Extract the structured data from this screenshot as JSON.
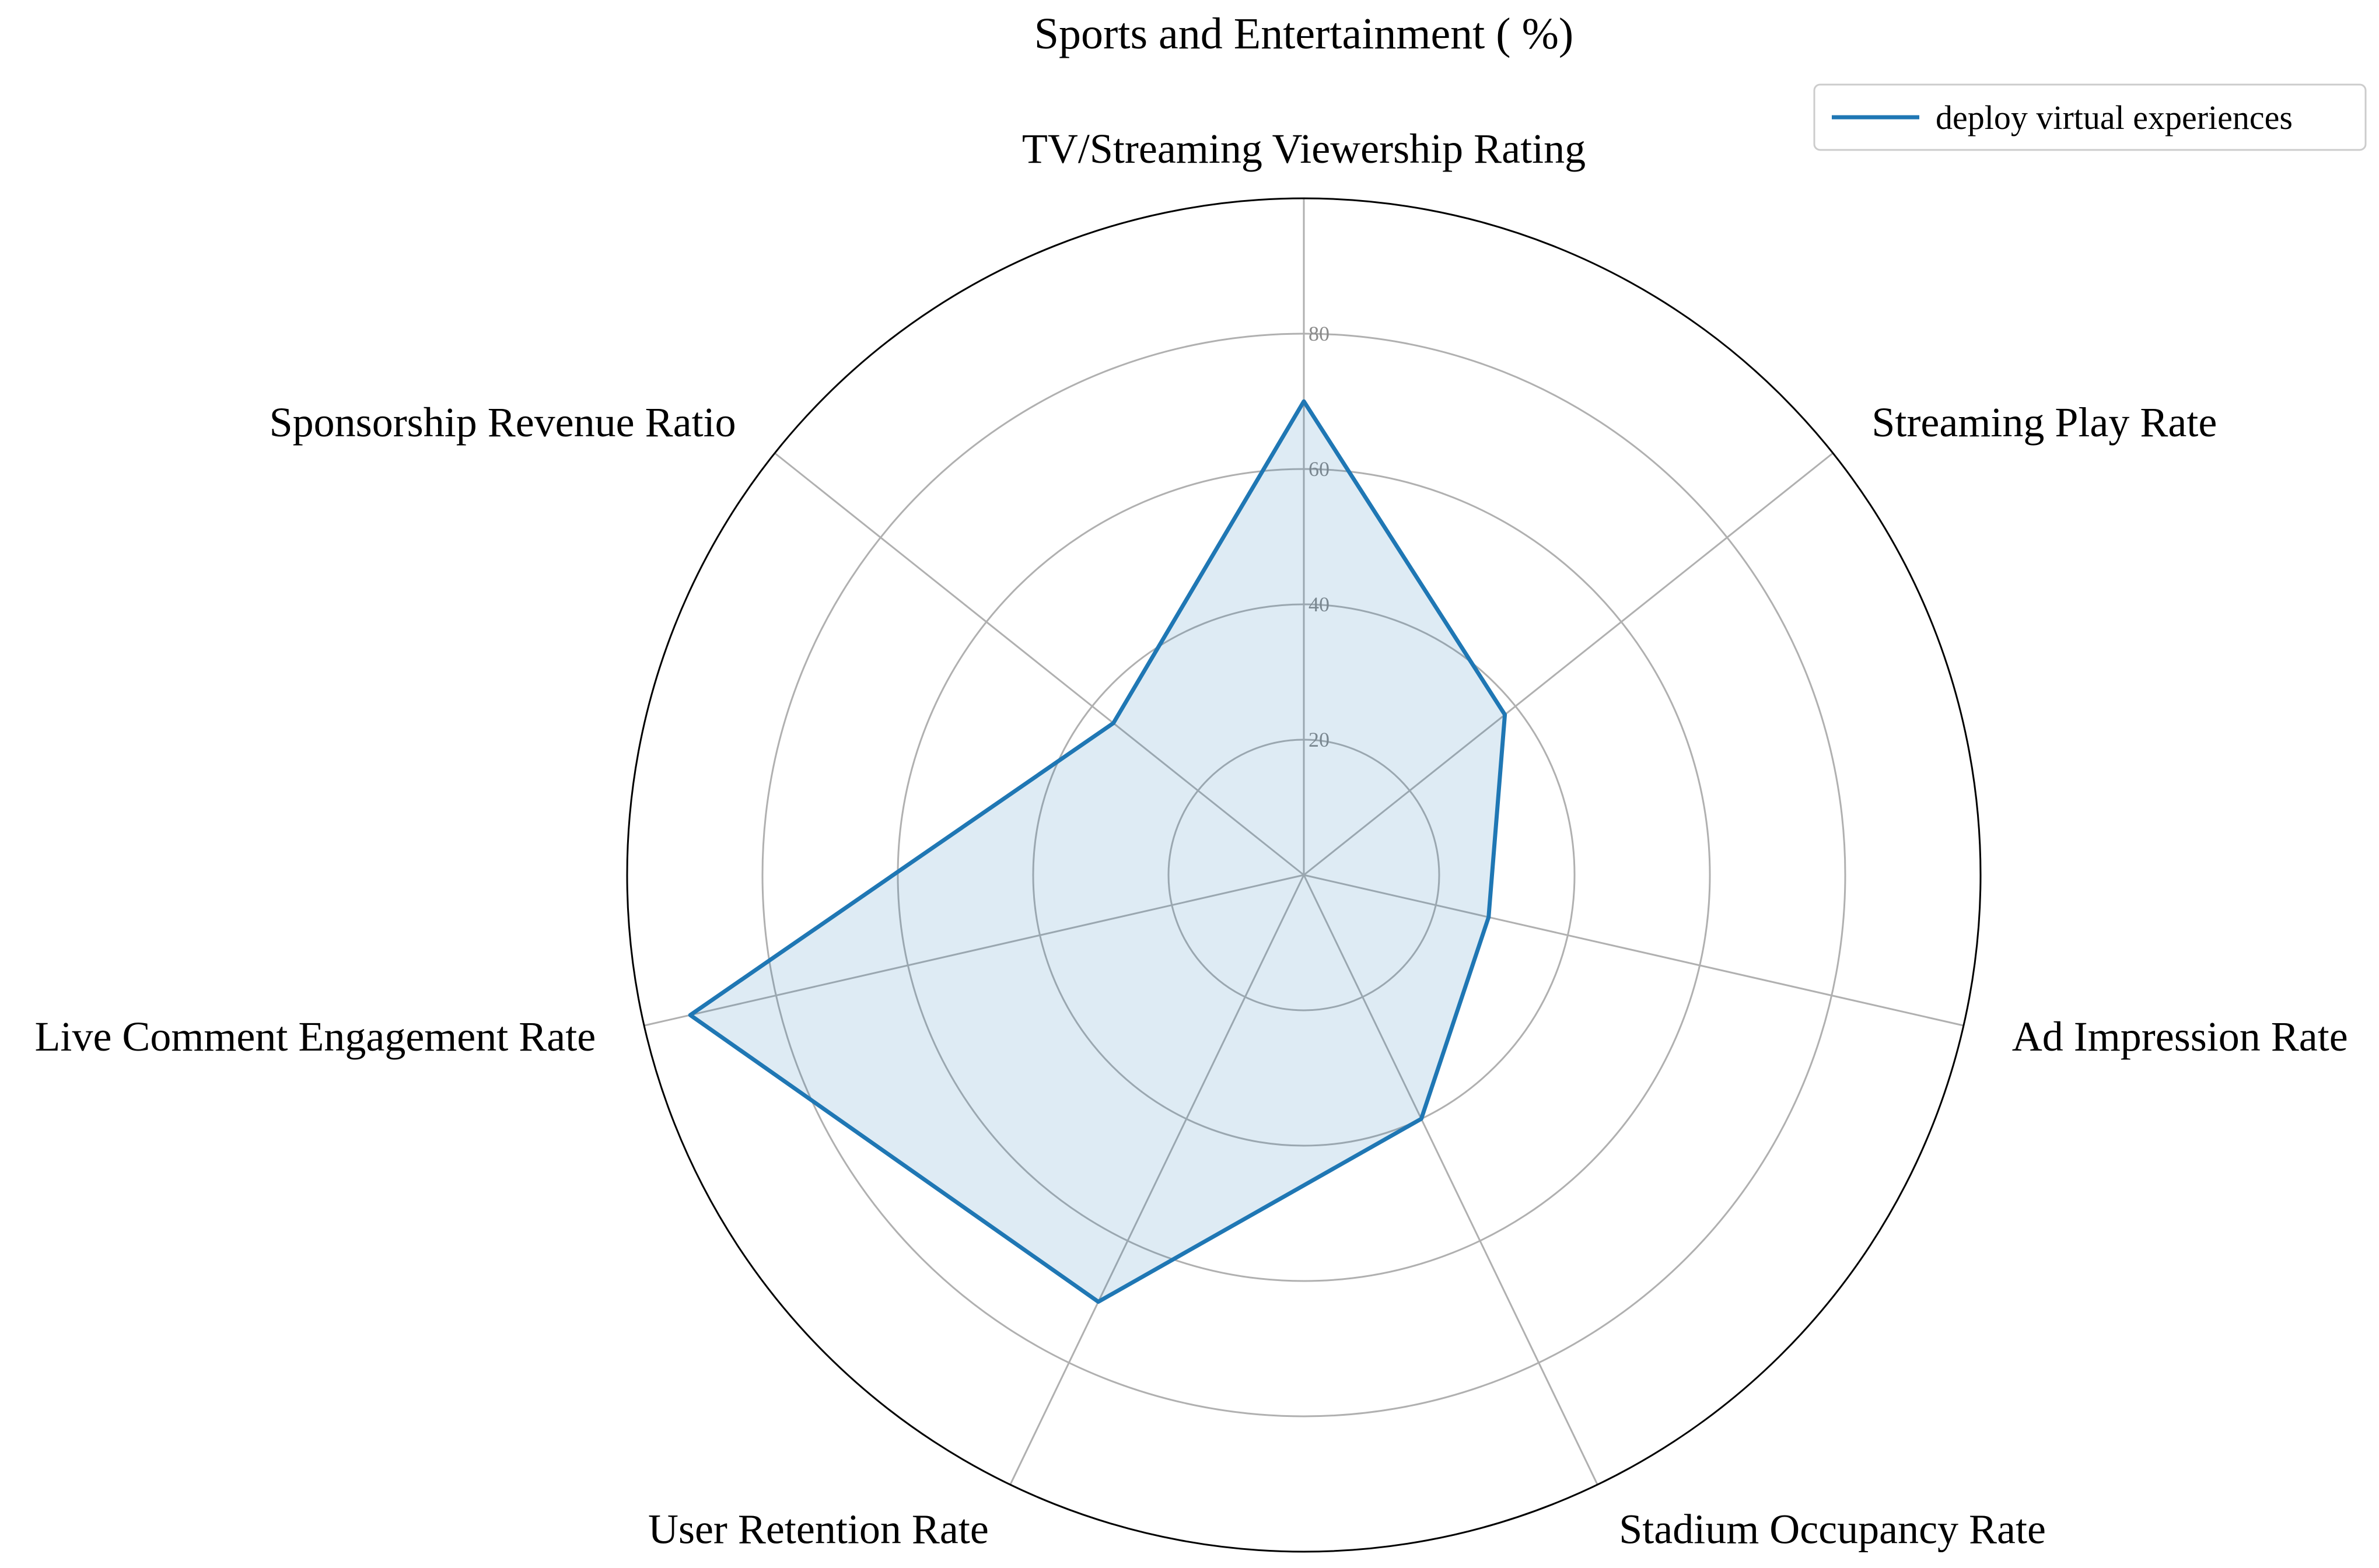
{
  "chart_data": {
    "type": "radar",
    "title": "Sports and Entertainment ( %)",
    "axes": [
      "TV/Streaming Viewership Rating",
      "Streaming Play Rate",
      "Ad Impression Rate",
      "Stadium Occupancy Rate",
      "User Retention Rate",
      "Live Comment Engagement Rate",
      "Sponsorship Revenue Ratio"
    ],
    "series": [
      {
        "name": "deploy virtual experiences",
        "values": [
          70,
          38,
          28,
          40,
          70,
          93,
          36
        ],
        "color": "#1f77b4",
        "fill_color": "#1f77b4",
        "fill_opacity": 0.15
      }
    ],
    "rlim": [
      0,
      100
    ],
    "rticks": [
      20,
      40,
      60,
      80
    ],
    "rtick_labels": [
      "20",
      "40",
      "60",
      "80"
    ],
    "grid": true,
    "legend_position": "top-right"
  }
}
